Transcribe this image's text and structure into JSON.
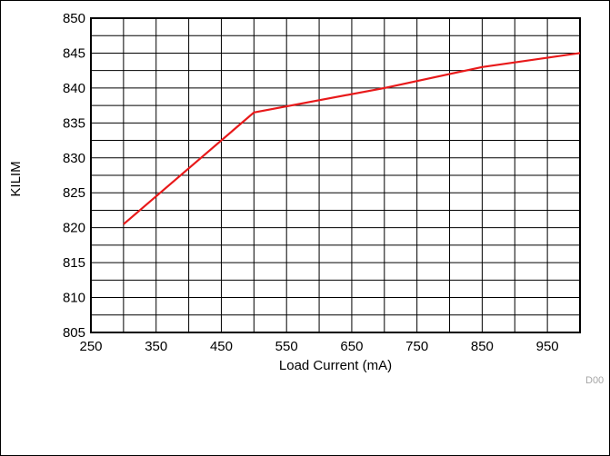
{
  "chart_data": {
    "type": "line",
    "xlabel": "Load Current (mA)",
    "ylabel": "KILIM",
    "xlim": [
      250,
      1000
    ],
    "ylim": [
      805,
      850
    ],
    "x_ticks": [
      250,
      350,
      450,
      550,
      650,
      750,
      850,
      950
    ],
    "y_ticks": [
      805,
      810,
      815,
      820,
      825,
      830,
      835,
      840,
      845,
      850
    ],
    "x_grid_step": 50,
    "y_grid_step": 2.5,
    "grid": true,
    "series": [
      {
        "x": [
          300,
          500,
          700,
          850,
          1000
        ],
        "y": [
          820.5,
          836.5,
          840.0,
          843.0,
          845.0
        ],
        "color": "#e8191a"
      }
    ],
    "figure_code": "D00"
  }
}
